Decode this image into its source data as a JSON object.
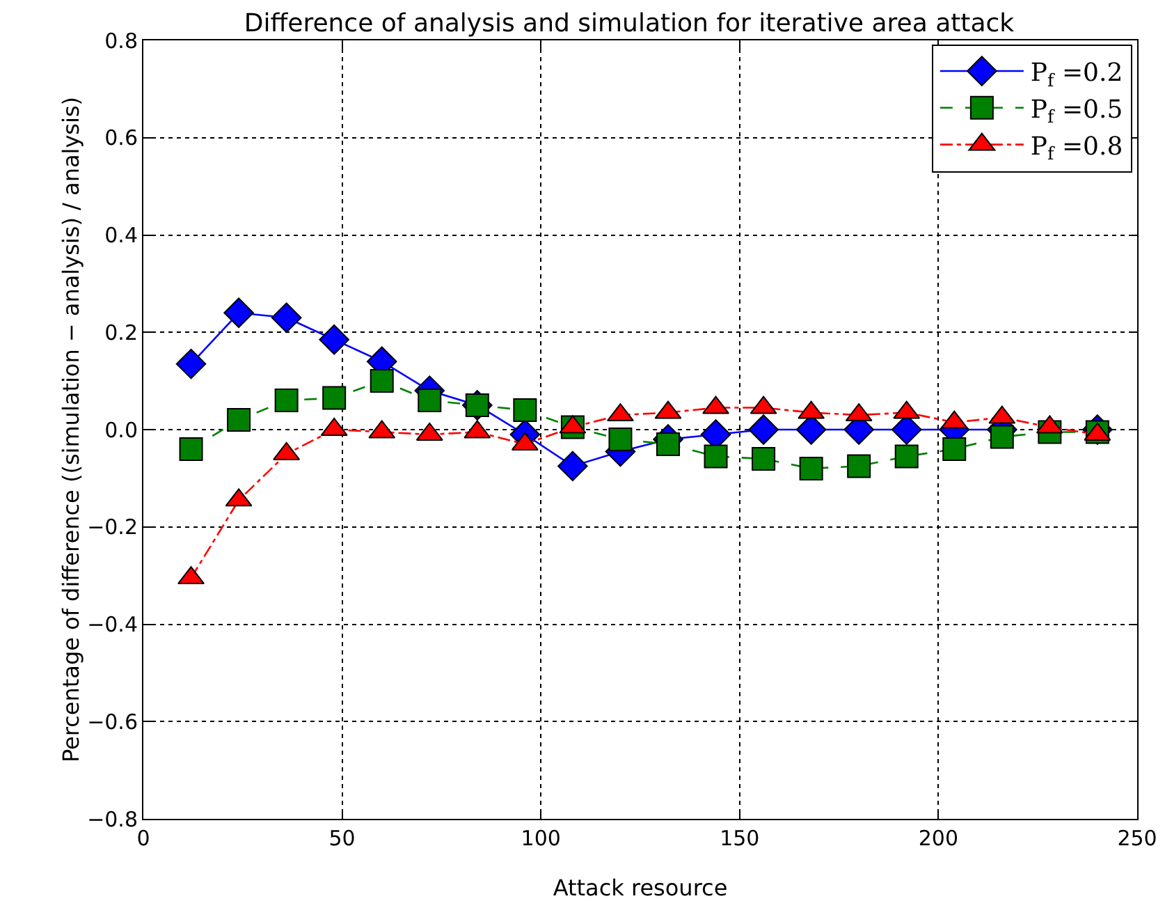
{
  "chart_data": {
    "type": "line",
    "title": "Difference of analysis and simulation for iterative area attack",
    "xlabel": "Attack resource",
    "ylabel": "Percentage of difference ((simulation − analysis) / analysis)",
    "x": [
      12,
      24,
      36,
      48,
      60,
      72,
      84,
      96,
      108,
      120,
      132,
      144,
      156,
      168,
      180,
      192,
      204,
      216,
      228,
      240
    ],
    "series": [
      {
        "name": "P$_{f}$ =0.2",
        "color": "#0000ff",
        "marker": "diamond",
        "line_style": "solid",
        "values": [
          0.135,
          0.24,
          0.23,
          0.185,
          0.14,
          0.08,
          0.05,
          -0.01,
          -0.075,
          -0.045,
          -0.02,
          -0.01,
          0,
          0,
          0,
          0,
          0,
          0,
          null,
          0
        ]
      },
      {
        "name": "P$_{f}$ =0.5",
        "color": "#008000",
        "marker": "square",
        "line_style": "dashed",
        "values": [
          -0.04,
          0.02,
          0.06,
          0.065,
          0.1,
          0.06,
          0.05,
          0.04,
          0.005,
          -0.02,
          -0.03,
          -0.055,
          -0.06,
          -0.08,
          -0.075,
          -0.055,
          -0.04,
          -0.015,
          -0.005,
          -0.005
        ]
      },
      {
        "name": "P$_{f}$ =0.8",
        "color": "#ff0000",
        "marker": "triangle",
        "line_style": "dotted",
        "values": [
          -0.305,
          -0.145,
          -0.05,
          0,
          -0.005,
          -0.01,
          -0.005,
          -0.03,
          0.005,
          0.03,
          0.035,
          0.045,
          0.045,
          0.035,
          0.03,
          0.035,
          0.015,
          0.025,
          0.005,
          -0.01
        ]
      }
    ],
    "xlim": [
      0,
      250
    ],
    "xticks": [
      0,
      50,
      100,
      150,
      200,
      250
    ],
    "ylim": [
      -0.8,
      0.8
    ],
    "yticks": [
      {
        "value": -0.8,
        "label": "−0.8"
      },
      {
        "value": -0.6,
        "label": "−0.6"
      },
      {
        "value": -0.4,
        "label": "−0.4"
      },
      {
        "value": -0.2,
        "label": "−0.2"
      },
      {
        "value": 0,
        "label": "0.0"
      },
      {
        "value": 0.2,
        "label": "0.2"
      },
      {
        "value": 0.4,
        "label": "0.4"
      },
      {
        "value": 0.6,
        "label": "0.6"
      },
      {
        "value": 0.8,
        "label": "0.8"
      }
    ],
    "grid": true,
    "legend": "top right"
  }
}
